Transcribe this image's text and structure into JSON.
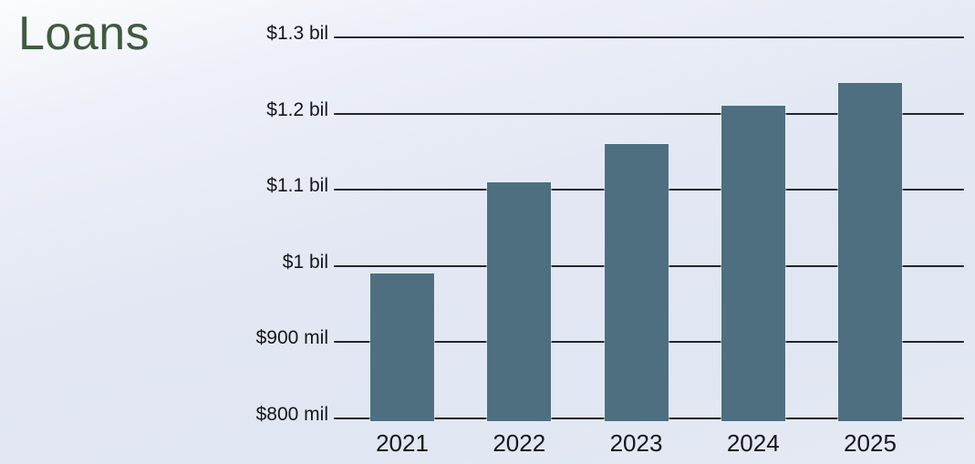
{
  "page": {
    "title": "Loans"
  },
  "colors": {
    "title": "#405a3e",
    "bar": "#4d6f7f",
    "text": "#15161a",
    "gridline": "#23262d",
    "background_top": "#fbfcfe",
    "background_bottom": "#e6eaf4"
  },
  "chart_data": {
    "type": "bar",
    "title": "Loans",
    "unit": "USD millions",
    "categories": [
      "2021",
      "2022",
      "2023",
      "2024",
      "2025"
    ],
    "values": [
      990,
      1110,
      1160,
      1210,
      1240
    ],
    "ylim": [
      800,
      1300
    ],
    "grid": true,
    "legend": "none",
    "yticks": [
      {
        "label": "$1.3 bil",
        "value": 1300
      },
      {
        "label": "$1.2 bil",
        "value": 1200
      },
      {
        "label": "$1.1 bil",
        "value": 1100
      },
      {
        "label": "$1 bil",
        "value": 1000
      },
      {
        "label": "$900 mil",
        "value": 900
      },
      {
        "label": "$800 mil",
        "value": 800
      }
    ]
  }
}
